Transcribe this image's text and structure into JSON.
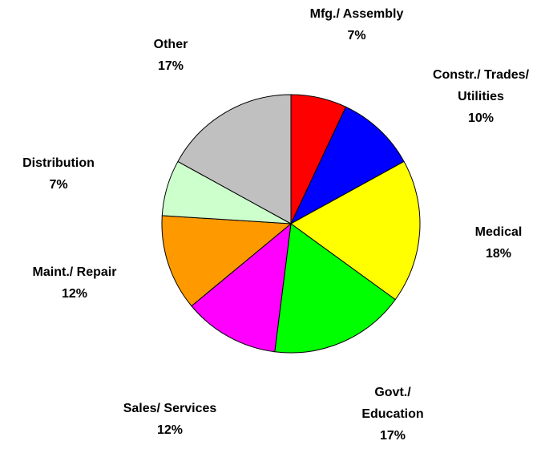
{
  "chart_data": {
    "type": "pie",
    "categories": [
      "Mfg./ Assembly",
      "Constr./ Trades/ Utilities",
      "Medical",
      "Govt./ Education",
      "Sales/ Services",
      "Maint./ Repair",
      "Distribution",
      "Other"
    ],
    "values": [
      7,
      10,
      18,
      17,
      12,
      12,
      7,
      17
    ],
    "value_labels": [
      "7%",
      "10%",
      "18%",
      "17%",
      "12%",
      "12%",
      "7%",
      "17%"
    ],
    "colors": [
      "#ff0000",
      "#0000ff",
      "#ffff00",
      "#00ff00",
      "#ff00ff",
      "#ff9900",
      "#ccffcc",
      "#c0c0c0"
    ]
  }
}
